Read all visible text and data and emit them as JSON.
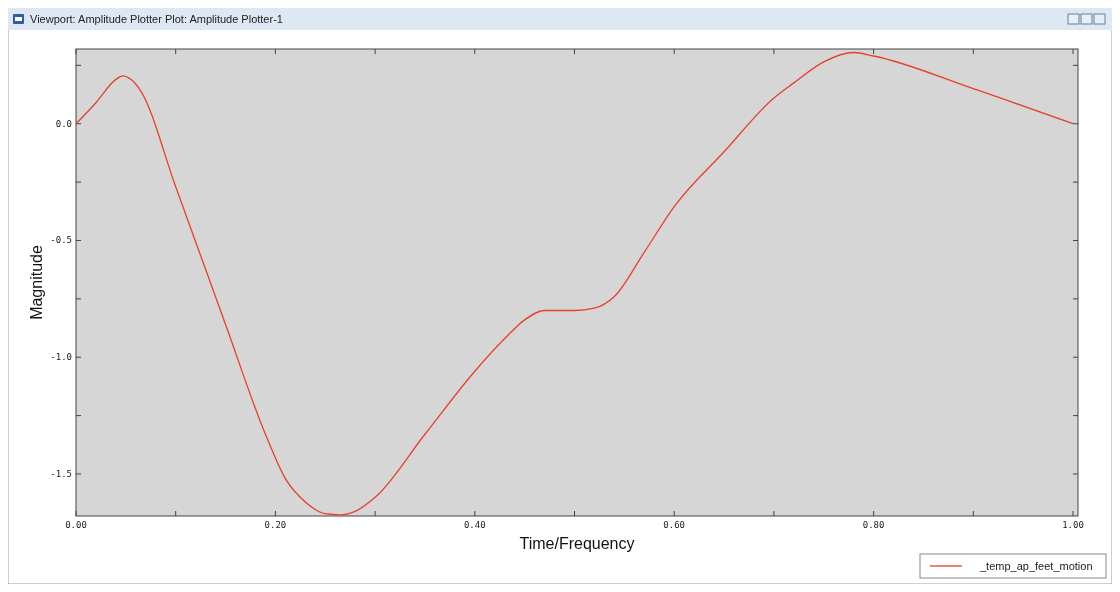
{
  "chart_data": {
    "type": "line",
    "title": "Viewport: Amplitude Plotter    Plot: Amplitude Plotter-1",
    "xlabel": "Time/Frequency",
    "ylabel": "Magnitude",
    "xlim": [
      0,
      1.005
    ],
    "ylim": [
      -1.68,
      0.32
    ],
    "xticks": [
      {
        "value": 0,
        "label": "0.00"
      },
      {
        "value": 0.1,
        "label": null
      },
      {
        "value": 0.2,
        "label": "0.20"
      },
      {
        "value": 0.3,
        "label": null
      },
      {
        "value": 0.4,
        "label": "0.40"
      },
      {
        "value": 0.5,
        "label": null
      },
      {
        "value": 0.6,
        "label": "0.60"
      },
      {
        "value": 0.7,
        "label": null
      },
      {
        "value": 0.8,
        "label": "0.80"
      },
      {
        "value": 0.9,
        "label": null
      },
      {
        "value": 1.0,
        "label": "1.00"
      }
    ],
    "yticks": [
      {
        "value": -1.5,
        "label": "-1.5"
      },
      {
        "value": -1.25,
        "label": null
      },
      {
        "value": -1.0,
        "label": "-1.0"
      },
      {
        "value": -0.75,
        "label": null
      },
      {
        "value": -0.5,
        "label": "-0.5"
      },
      {
        "value": -0.25,
        "label": null
      },
      {
        "value": 0,
        "label": "0.0"
      },
      {
        "value": 0.25,
        "label": null
      }
    ],
    "legend": "bottom right",
    "grid": false,
    "series": [
      {
        "name": "_temp_ap_feet_motion",
        "color": "#e8402a",
        "x": [
          0,
          0.02,
          0.04,
          0.047,
          0.055,
          0.065,
          0.1,
          0.15,
          0.19,
          0.21,
          0.23,
          0.25,
          0.265,
          0.28,
          0.3,
          0.35,
          0.4,
          0.43,
          0.45,
          0.47,
          0.5,
          0.52,
          0.54,
          0.57,
          0.6,
          0.65,
          0.7,
          0.72,
          0.75,
          0.78,
          0.8,
          0.9,
          1.0
        ],
        "values": [
          0,
          0.09,
          0.19,
          0.205,
          0.19,
          0.14,
          -0.27,
          -0.86,
          -1.33,
          -1.52,
          -1.62,
          -1.67,
          -1.675,
          -1.66,
          -1.6,
          -1.33,
          -1.06,
          -0.92,
          -0.84,
          -0.8,
          -0.8,
          -0.79,
          -0.74,
          -0.55,
          -0.355,
          -0.12,
          0.11,
          0.175,
          0.265,
          0.305,
          0.29,
          0.15,
          0.0
        ]
      }
    ]
  }
}
